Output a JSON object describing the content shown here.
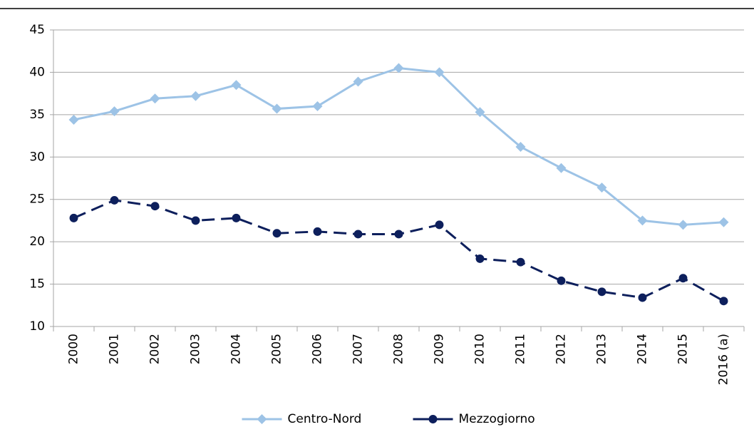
{
  "chart_data": {
    "type": "line",
    "categories": [
      "2000",
      "2001",
      "2002",
      "2003",
      "2004",
      "2005",
      "2006",
      "2007",
      "2008",
      "2009",
      "2010",
      "2011",
      "2012",
      "2013",
      "2014",
      "2015",
      "2016 (a)"
    ],
    "series": [
      {
        "name": "Centro-Nord",
        "color": "#9dc3e6",
        "marker": "diamond",
        "dash": false,
        "values": [
          34.4,
          35.4,
          36.9,
          37.2,
          38.5,
          35.7,
          36.0,
          38.9,
          40.5,
          40.0,
          35.3,
          31.2,
          28.7,
          26.4,
          22.5,
          22.0,
          22.3
        ]
      },
      {
        "name": "Mezzogiorno",
        "color": "#0d1f5c",
        "marker": "circle",
        "dash": true,
        "values": [
          22.8,
          24.9,
          24.2,
          22.5,
          22.8,
          21.0,
          21.2,
          20.9,
          20.9,
          22.0,
          18.0,
          17.6,
          15.4,
          14.1,
          13.4,
          15.7,
          13.0
        ]
      }
    ],
    "ylim": [
      10,
      45
    ],
    "yticks": [
      10,
      15,
      20,
      25,
      30,
      35,
      40,
      45
    ],
    "grid": true,
    "legend": "bottom"
  }
}
